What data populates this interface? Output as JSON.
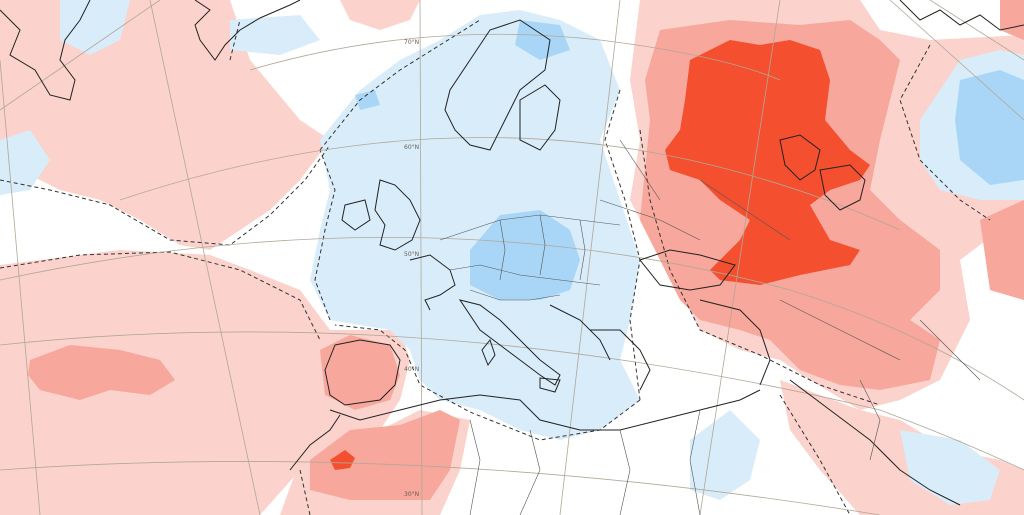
{
  "map": {
    "colors": {
      "background": "#ffffff",
      "warm_weak": "#fbd2cc",
      "warm_moderate": "#f7a79b",
      "warm_strong": "#f44f2f",
      "cool_weak": "#d8ecfa",
      "cool_moderate": "#a9d6f6",
      "graticule": "#b2a797",
      "coastline": "#222222",
      "border": "#555555",
      "zero_contour": "#333333"
    },
    "latitude_labels": [
      "70°N",
      "60°N",
      "50°N",
      "40°N",
      "30°N"
    ]
  }
}
